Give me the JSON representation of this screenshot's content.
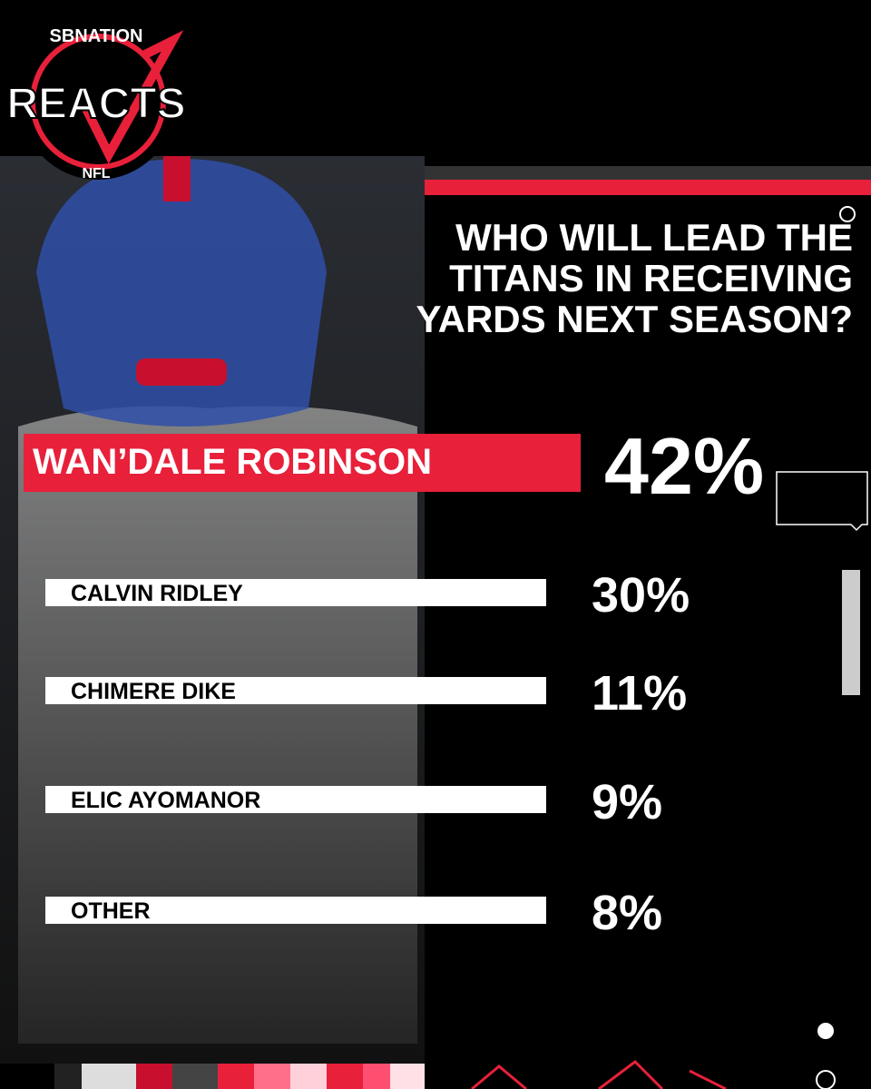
{
  "header": {
    "brand": "SBNATION",
    "logo": "REACTS",
    "league": "NFL"
  },
  "question": {
    "lines": [
      "WHO WILL LEAD THE",
      "TITANS IN RECEIVING",
      "YARDS NEXT SEASON?"
    ]
  },
  "results": [
    {
      "name": "WAN’DALE ROBINSON",
      "percent": "42%"
    },
    {
      "name": "CALVIN RIDLEY",
      "percent": "30%"
    },
    {
      "name": "CHIMERE DIKE",
      "percent": "11%"
    },
    {
      "name": "ELIC AYOMANOR",
      "percent": "9%"
    },
    {
      "name": "OTHER",
      "percent": "8%"
    }
  ]
}
